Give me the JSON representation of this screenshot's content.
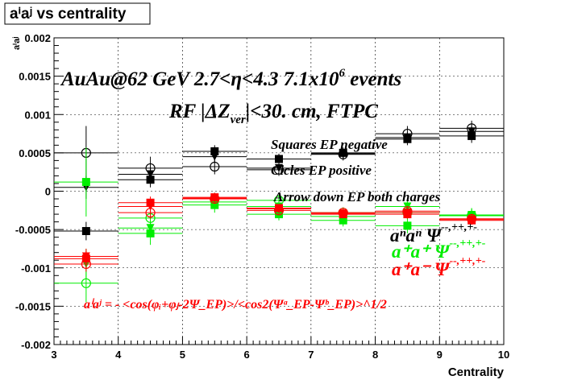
{
  "title": "aⁱaʲ vs centrality",
  "chart_data": {
    "type": "scatter",
    "title": "aⁱaʲ vs centrality",
    "xlabel": "Centrality",
    "ylabel": "aⁱaʲ",
    "xlim": [
      3,
      10
    ],
    "ylim": [
      -0.002,
      0.002
    ],
    "grid": true,
    "x_ticks": [
      "3",
      "4",
      "5",
      "6",
      "7",
      "8",
      "9",
      "10"
    ],
    "y_ticks": [
      "-0.002",
      "-0.0015",
      "-0.001",
      "-0.0005",
      "0",
      "0.0005",
      "0.001",
      "0.0015",
      "0.002"
    ],
    "annotations": {
      "line1_main": "AuAu@62 GeV 2.7<η<4.3 7.1x10",
      "line1_sup": "6",
      "line1_end": " events",
      "line2": "RF |ΔZ",
      "line2_sub": "ver",
      "line2_end": "|<30. cm, FTPC",
      "legend_squares": "Squares EP negative",
      "legend_circles": "Cicles EP positive",
      "legend_arrows": "Arrow down EP both charges",
      "label_minus_minus": "aⁿaⁿ  Ψ",
      "label_minus_minus_sup": "--,++,+-",
      "label_plus_plus": "a⁺a⁺  Ψ",
      "label_plus_plus_sup": "--,++,+-",
      "label_plus_minus": "a⁺a⁻  Ψ",
      "label_plus_minus_sup": "--,++,+-",
      "formula": "aⁱaʲ = - <cos(φᵢ+φⱼ-2Ψ_EP)>/<cos2(Ψᵃ_EP-Ψᵇ_EP)>^1/2"
    },
    "series": [
      {
        "group": "minus-minus",
        "marker": "square-open",
        "color": "#000000",
        "x": [
          3.5,
          4.5,
          5.5,
          6.5,
          7.5,
          8.5,
          9.5
        ],
        "y": [
          -0.00052,
          0.00015,
          0.00052,
          0.00042,
          0.0005,
          0.00068,
          0.00072
        ],
        "err": [
          0.00012,
          0.0001,
          8e-05,
          7e-05,
          7e-05,
          8e-05,
          9e-05
        ]
      },
      {
        "group": "minus-minus",
        "marker": "circle-open",
        "color": "#000000",
        "x": [
          3.5,
          4.5,
          5.5,
          6.5,
          7.5,
          8.5,
          9.5
        ],
        "y": [
          0.0005,
          0.0003,
          0.00032,
          0.00028,
          0.00048,
          0.00075,
          0.00082
        ],
        "err": [
          0.00035,
          0.00015,
          0.0001,
          8e-05,
          8e-05,
          0.0001,
          0.0001
        ]
      },
      {
        "group": "minus-minus",
        "marker": "triangle-down",
        "color": "#000000",
        "x": [
          3.5,
          4.5,
          5.5,
          6.5,
          7.5,
          8.5,
          9.5
        ],
        "y": [
          5e-05,
          0.00022,
          0.00045,
          0.0003,
          0.00049,
          0.0007,
          0.00078
        ],
        "err": [
          0.00015,
          9e-05,
          7e-05,
          6e-05,
          6e-05,
          7e-05,
          8e-05
        ]
      },
      {
        "group": "plus-plus",
        "marker": "square",
        "color": "#00ee00",
        "x": [
          3.5,
          4.5,
          5.5,
          6.5,
          7.5,
          8.5,
          9.5
        ],
        "y": [
          0.00012,
          -0.00055,
          -0.00018,
          -0.0003,
          -0.00038,
          -0.00045,
          -0.00032
        ],
        "err": [
          0.00045,
          0.00015,
          0.0001,
          8e-05,
          8e-05,
          0.0001,
          0.0001
        ]
      },
      {
        "group": "plus-plus",
        "marker": "circle-open",
        "color": "#00ee00",
        "x": [
          3.5,
          4.5,
          5.5,
          6.5,
          7.5,
          8.5,
          9.5
        ],
        "y": [
          -0.0012,
          -0.00035,
          -0.0001,
          -0.00012,
          -0.00028,
          -0.00028,
          -0.00032
        ],
        "err": [
          0.00025,
          0.00012,
          8e-05,
          7e-05,
          7e-05,
          9e-05,
          9e-05
        ]
      },
      {
        "group": "plus-plus",
        "marker": "triangle-down",
        "color": "#00ee00",
        "x": [
          3.5,
          4.5,
          5.5,
          6.5,
          7.5,
          8.5,
          9.5
        ],
        "y": [
          -0.00095,
          -0.00048,
          -0.00014,
          -0.0002,
          -0.00033,
          -0.0002,
          -0.00031
        ],
        "err": [
          0.0002,
          0.0001,
          7e-05,
          6e-05,
          6e-05,
          8e-05,
          8e-05
        ]
      },
      {
        "group": "plus-minus",
        "marker": "square",
        "color": "#ff0000",
        "x": [
          3.5,
          4.5,
          5.5,
          6.5,
          7.5,
          8.5,
          9.5
        ],
        "y": [
          -0.00088,
          -0.00015,
          -8e-05,
          -0.00022,
          -0.0003,
          -0.0003,
          -0.00038
        ],
        "err": [
          0.0001,
          8e-05,
          6e-05,
          5e-05,
          5e-05,
          6e-05,
          6e-05
        ]
      },
      {
        "group": "plus-minus",
        "marker": "circle-open",
        "color": "#ff0000",
        "x": [
          3.5,
          4.5,
          5.5,
          6.5,
          7.5,
          8.5,
          9.5
        ],
        "y": [
          -0.00095,
          -0.00028,
          -0.0001,
          -0.00025,
          -0.00028,
          -0.00026,
          -0.00036
        ],
        "err": [
          0.0001,
          8e-05,
          6e-05,
          5e-05,
          5e-05,
          6e-05,
          6e-05
        ]
      },
      {
        "group": "plus-minus",
        "marker": "triangle-down",
        "color": "#ff0000",
        "x": [
          3.5,
          4.5,
          5.5,
          6.5,
          7.5,
          8.5,
          9.5
        ],
        "y": [
          -0.00085,
          -0.0002,
          -9e-05,
          -0.00023,
          -0.00029,
          -0.00028,
          -0.00037
        ],
        "err": [
          0.0001,
          7e-05,
          5e-05,
          5e-05,
          5e-05,
          5e-05,
          6e-05
        ]
      }
    ]
  }
}
